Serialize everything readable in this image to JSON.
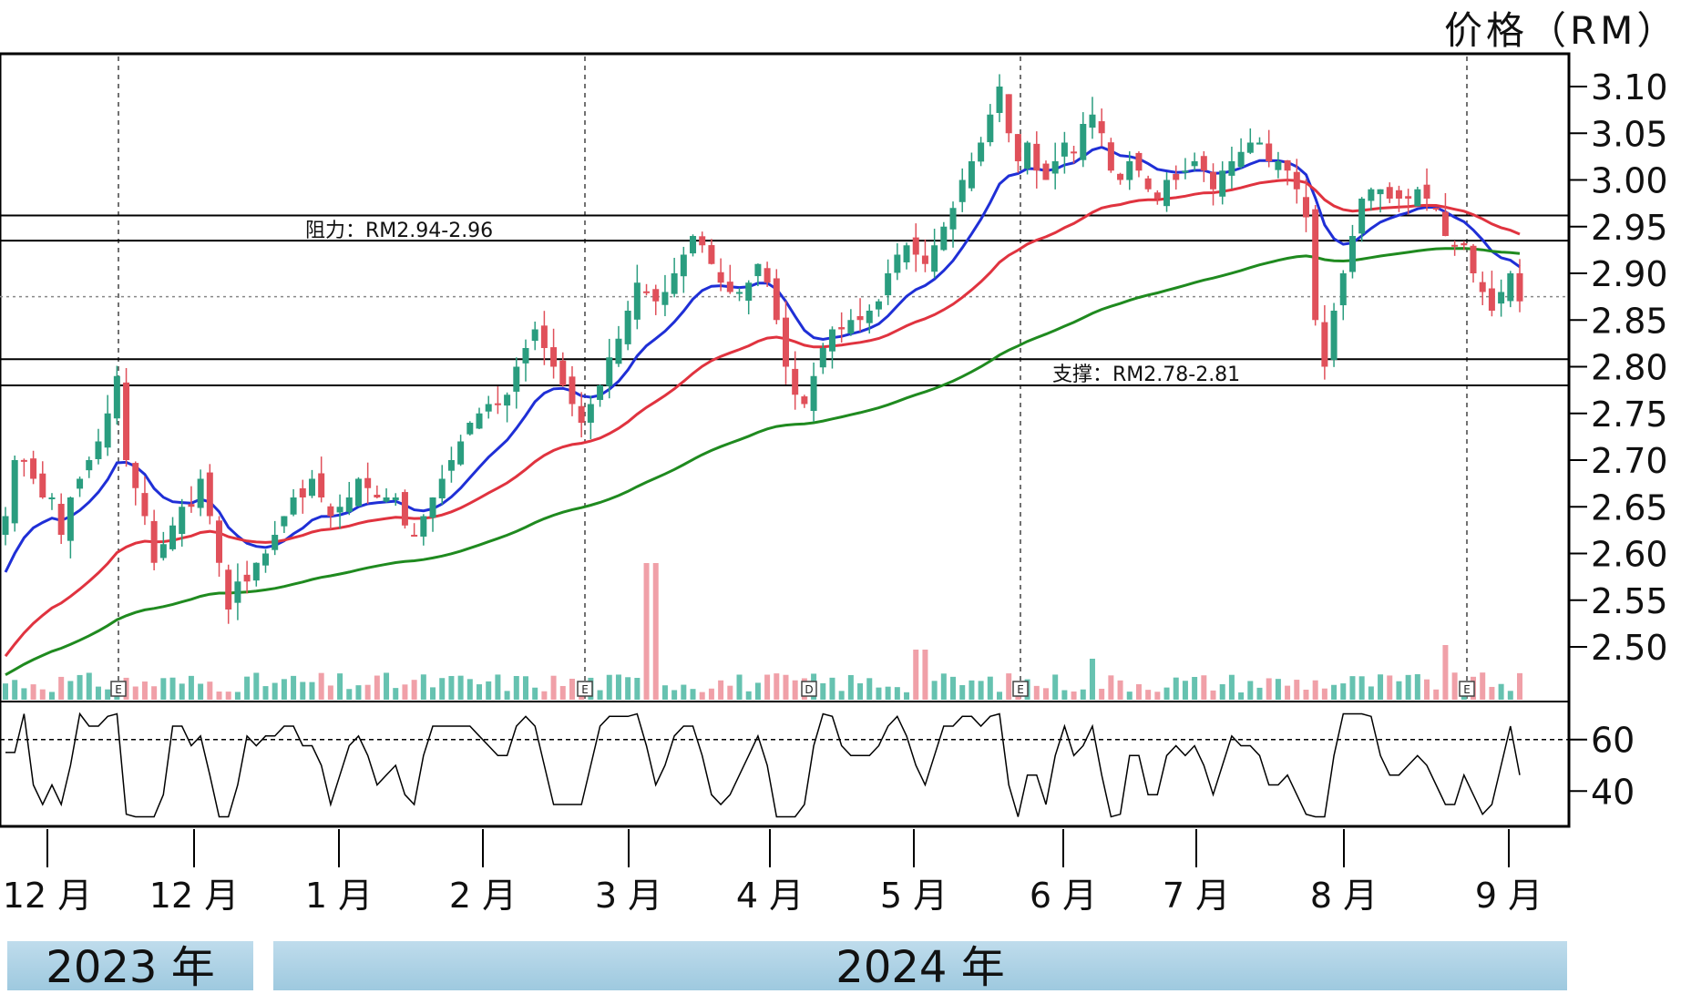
{
  "price_unit_label": "价格（RM）",
  "year_labels": [
    "2023 年",
    "2024 年"
  ],
  "colors": {
    "frame": "#000000",
    "candle_up": "#2a9d7f",
    "candle_down": "#e0505a",
    "ma_fast": "#1f2fd6",
    "ma_mid": "#e0333f",
    "ma_slow": "#1f8a1f",
    "volume_up": "#66c2b0",
    "volume_down": "#f0a0a8",
    "rsi_line": "#000000",
    "year_bar": "#a9d0e4"
  },
  "chart_data": [
    {
      "type": "candlestick",
      "title": "",
      "ylabel": "价格（RM）",
      "ylim": [
        2.45,
        3.14
      ],
      "y_ticks": [
        "3.10",
        "3.05",
        "3.00",
        "2.95",
        "2.90",
        "2.85",
        "2.80",
        "2.75",
        "2.70",
        "2.65",
        "2.60",
        "2.55",
        "2.50"
      ],
      "x_tick_labels": [
        "12 月",
        "12 月",
        "1 月",
        "2 月",
        "3 月",
        "4 月",
        "5 月",
        "6 月",
        "7 月",
        "8 月",
        "9 月"
      ],
      "annotations": [
        "阻力：RM2.94-2.96",
        "支撑：RM2.78-2.81"
      ],
      "resistance_zone": [
        2.935,
        2.962
      ],
      "support_zone": [
        2.78,
        2.808
      ],
      "last_price_line": 2.875,
      "close_series": [
        2.64,
        2.7,
        2.7,
        2.68,
        2.66,
        2.66,
        2.62,
        2.66,
        2.68,
        2.7,
        2.72,
        2.75,
        2.79,
        2.7,
        2.67,
        2.64,
        2.59,
        2.61,
        2.63,
        2.65,
        2.65,
        2.68,
        2.64,
        2.59,
        2.54,
        2.57,
        2.57,
        2.59,
        2.6,
        2.62,
        2.64,
        2.66,
        2.66,
        2.68,
        2.66,
        2.64,
        2.65,
        2.66,
        2.68,
        2.67,
        2.66,
        2.66,
        2.66,
        2.63,
        2.62,
        2.64,
        2.66,
        2.68,
        2.7,
        2.72,
        2.74,
        2.75,
        2.76,
        2.76,
        2.77,
        2.8,
        2.82,
        2.84,
        2.82,
        2.8,
        2.78,
        2.76,
        2.74,
        2.76,
        2.78,
        2.81,
        2.83,
        2.86,
        2.89,
        2.88,
        2.87,
        2.88,
        2.9,
        2.92,
        2.94,
        2.93,
        2.91,
        2.89,
        2.88,
        2.88,
        2.89,
        2.91,
        2.89,
        2.85,
        2.8,
        2.77,
        2.76,
        2.79,
        2.82,
        2.84,
        2.84,
        2.85,
        2.85,
        2.86,
        2.87,
        2.9,
        2.92,
        2.93,
        2.92,
        2.91,
        2.93,
        2.95,
        2.97,
        3.0,
        3.02,
        3.04,
        3.07,
        3.1,
        3.05,
        3.02,
        3.04,
        3.01,
        3.0,
        3.02,
        3.04,
        3.03,
        3.06,
        3.07,
        3.05,
        3.01,
        3.0,
        3.02,
        3.01,
        2.99,
        2.98,
        3.0,
        3.0,
        3.01,
        3.02,
        3.01,
        2.99,
        3.01,
        3.02,
        3.03,
        3.04,
        3.04,
        3.02,
        3.02,
        3.01,
        2.99,
        2.96,
        2.85,
        2.8,
        2.86,
        2.9,
        2.94,
        2.98,
        2.99,
        2.99,
        2.98,
        2.98,
        2.98,
        2.99,
        2.98,
        2.97,
        2.94,
        2.93,
        2.93,
        2.9,
        2.88,
        2.86,
        2.88,
        2.9,
        2.87
      ],
      "moving_averages": {
        "fast": {
          "name": "",
          "start": 2.58,
          "end": 2.94
        },
        "mid": {
          "name": "",
          "start": 2.49,
          "end": 2.96
        },
        "slow": {
          "name": "",
          "start": 2.47,
          "end": 2.92
        }
      },
      "volume_event_markers": [
        "E",
        "E",
        "D",
        "E",
        "E"
      ]
    },
    {
      "type": "line",
      "title": "",
      "ylabel": "",
      "ylim": [
        27,
        73
      ],
      "y_ticks": [
        "60",
        "40"
      ],
      "overbought_line": 60
    }
  ]
}
